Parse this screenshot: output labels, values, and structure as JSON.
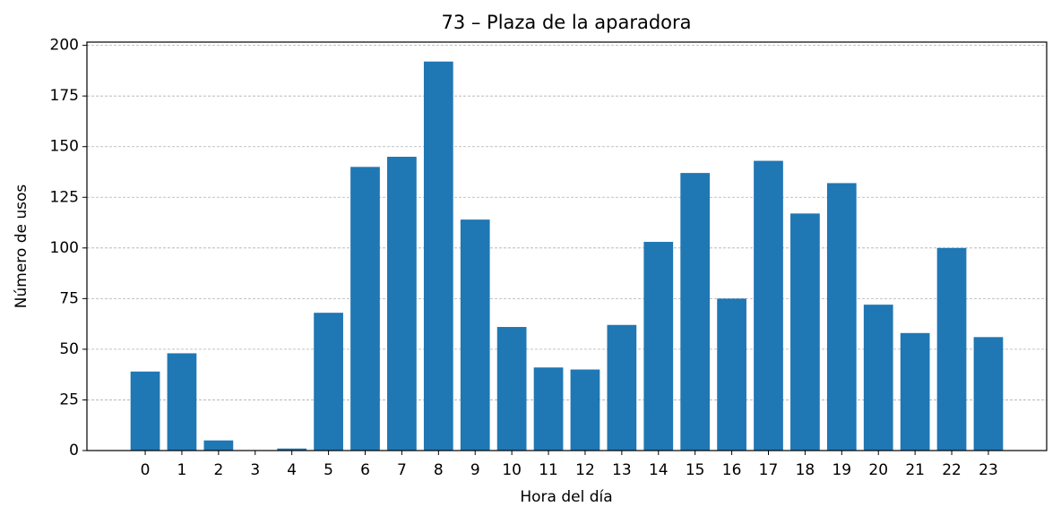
{
  "chart_data": {
    "type": "bar",
    "title": "73 – Plaza de la aparadora",
    "x_label": "Hora del día",
    "y_label": "Número de usos",
    "categories": [
      "0",
      "1",
      "2",
      "3",
      "4",
      "5",
      "6",
      "7",
      "8",
      "9",
      "10",
      "11",
      "12",
      "13",
      "14",
      "15",
      "16",
      "17",
      "18",
      "19",
      "20",
      "21",
      "22",
      "23"
    ],
    "values": [
      39,
      48,
      5,
      0,
      1,
      68,
      140,
      145,
      192,
      114,
      61,
      41,
      40,
      62,
      103,
      137,
      75,
      143,
      117,
      132,
      72,
      58,
      100,
      56
    ],
    "color": "#1f77b4",
    "ylim": [
      0,
      201.6
    ],
    "yticks": [
      0,
      25,
      50,
      75,
      100,
      125,
      150,
      175,
      200
    ],
    "grid": true
  }
}
